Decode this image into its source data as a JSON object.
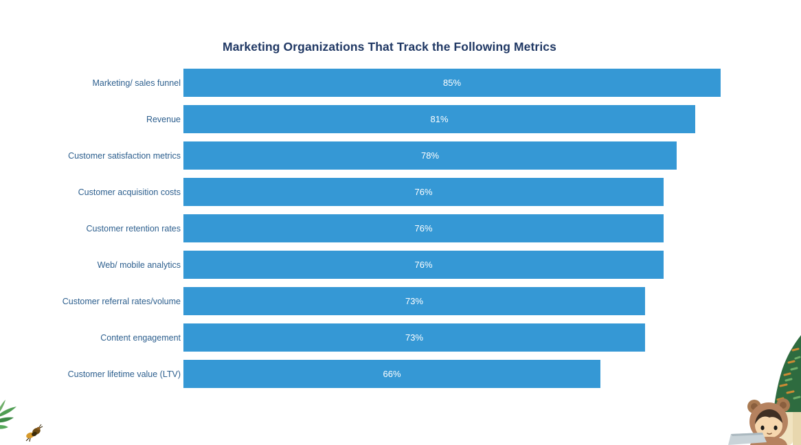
{
  "chart_data": {
    "type": "bar",
    "orientation": "horizontal",
    "title": "Marketing Organizations That Track the Following Metrics",
    "categories": [
      "Marketing/ sales funnel",
      "Revenue",
      "Customer satisfaction metrics",
      "Customer acquisition costs",
      "Customer retention rates",
      "Web/ mobile analytics",
      "Customer referral rates/volume",
      "Content engagement",
      "Customer lifetime value (LTV)"
    ],
    "values": [
      85,
      81,
      78,
      76,
      76,
      76,
      73,
      73,
      66
    ],
    "value_labels": [
      "85%",
      "81%",
      "78%",
      "76%",
      "76%",
      "76%",
      "73%",
      "73%",
      "66%"
    ],
    "xlim": [
      0,
      85
    ],
    "grid": false,
    "legend": false,
    "bar_color": "#3598D5",
    "value_label_color": "#FFFFFF",
    "category_label_color": "#2D5F8E",
    "title_color": "#203864",
    "background_color": "#FFFFFF"
  },
  "decorations": {
    "bottom_left": [
      "leaf",
      "bee"
    ],
    "bottom_right": [
      "tree",
      "bear-mascot",
      "laptop"
    ]
  }
}
